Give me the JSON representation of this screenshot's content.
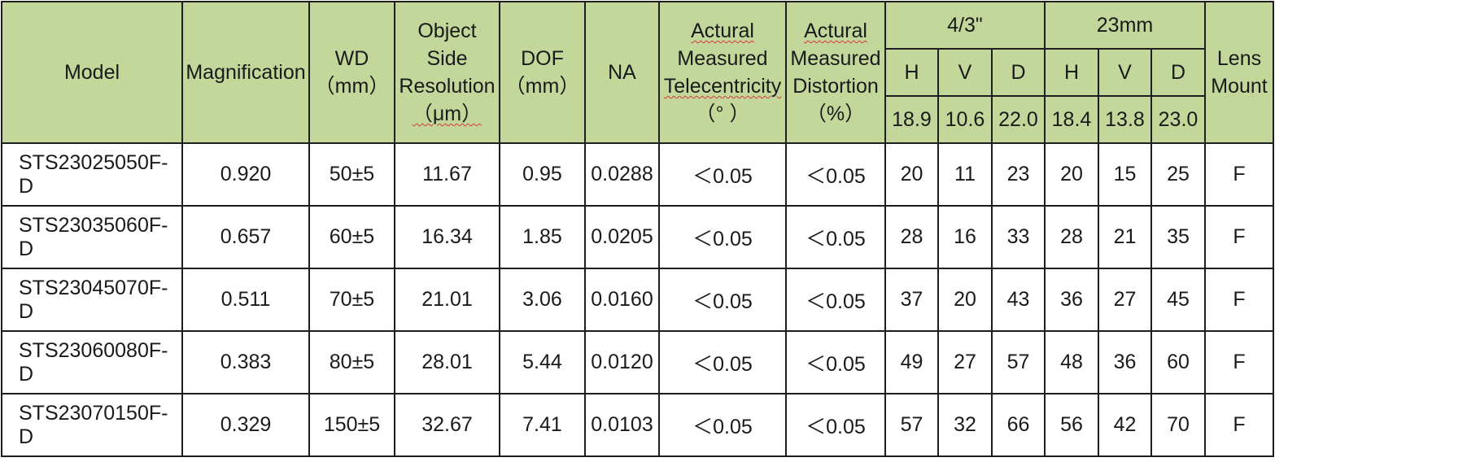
{
  "header": {
    "model": "Model",
    "magnification": "Magnification",
    "wd": [
      "WD",
      "（mm）"
    ],
    "object_side_resolution": [
      "Object",
      "Side",
      "Resolution",
      "（μm）"
    ],
    "dof": [
      "DOF",
      "（mm）"
    ],
    "na": "NA",
    "telecentricity": [
      "Actural",
      "Measured",
      "Telecentricity",
      "（°  ）"
    ],
    "distortion": [
      "Actural",
      "Measured",
      "Distortion",
      "（%）"
    ],
    "group_a": {
      "label": "4/3\"",
      "cols": [
        {
          "name": "H",
          "value": "18.9"
        },
        {
          "name": "V",
          "value": "10.6"
        },
        {
          "name": "D",
          "value": "22.0"
        }
      ]
    },
    "group_b": {
      "label": "23mm",
      "cols": [
        {
          "name": "H",
          "value": "18.4"
        },
        {
          "name": "V",
          "value": "13.8"
        },
        {
          "name": "D",
          "value": "23.0"
        }
      ]
    },
    "lens_mount": [
      "Lens",
      "Mount"
    ]
  },
  "rows": [
    [
      "STS23025050F-D",
      "0.920",
      "50±5",
      "11.67",
      "0.95",
      "0.0288",
      "＜0.05",
      "＜0.05",
      "20",
      "11",
      "23",
      "20",
      "15",
      "25",
      "F"
    ],
    [
      "STS23035060F-D",
      "0.657",
      "60±5",
      "16.34",
      "1.85",
      "0.0205",
      "＜0.05",
      "＜0.05",
      "28",
      "16",
      "33",
      "28",
      "21",
      "35",
      "F"
    ],
    [
      "STS23045070F-D",
      "0.511",
      "70±5",
      "21.01",
      "3.06",
      "0.0160",
      "＜0.05",
      "＜0.05",
      "37",
      "20",
      "43",
      "36",
      "27",
      "45",
      "F"
    ],
    [
      "STS23060080F-D",
      "0.383",
      "80±5",
      "28.01",
      "5.44",
      "0.0120",
      "＜0.05",
      "＜0.05",
      "49",
      "27",
      "57",
      "48",
      "36",
      "60",
      "F"
    ],
    [
      "STS23070150F-D",
      "0.329",
      "150±5",
      "32.67",
      "7.41",
      "0.0103",
      "＜0.05",
      "＜0.05",
      "57",
      "32",
      "66",
      "56",
      "42",
      "70",
      "F"
    ]
  ]
}
